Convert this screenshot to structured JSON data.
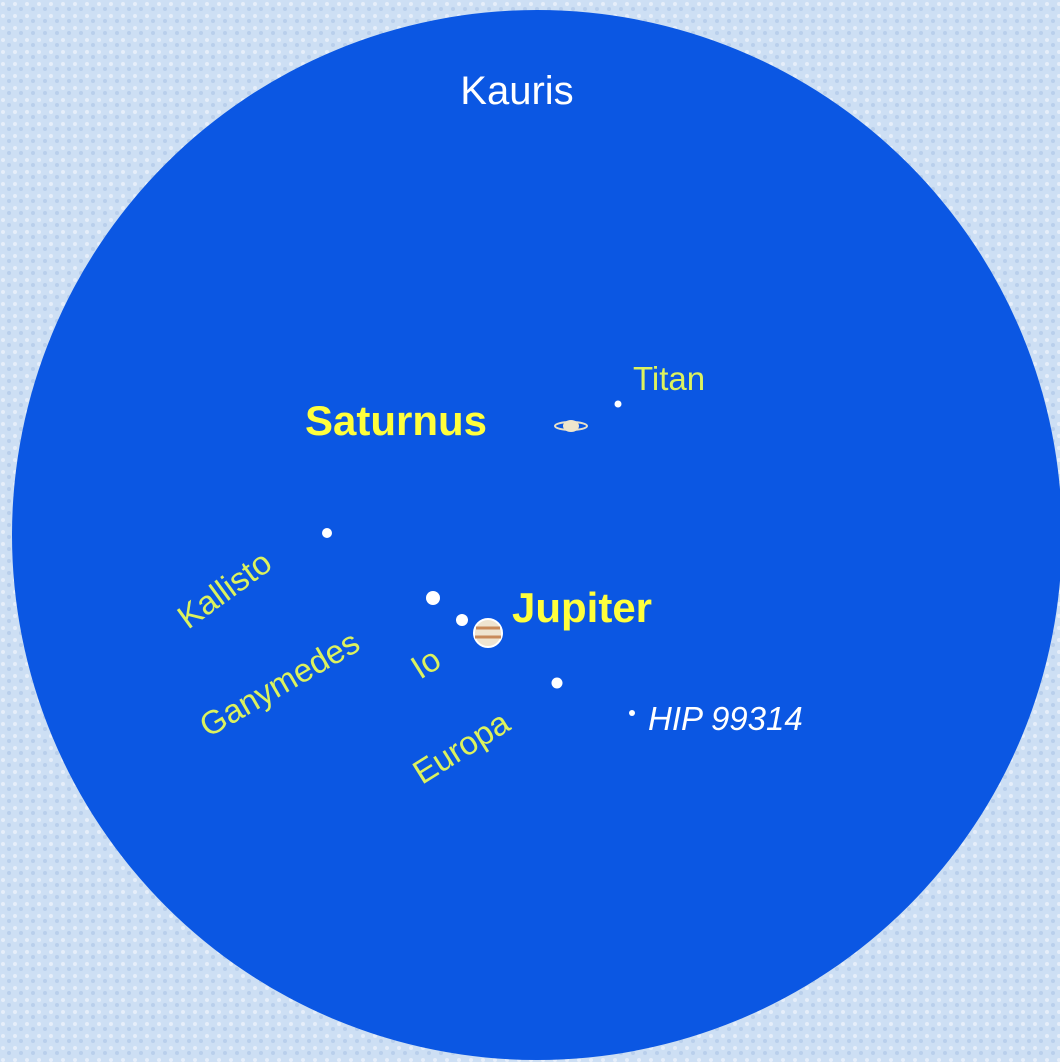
{
  "view": {
    "constellation": "Kauris",
    "planets": [
      {
        "label": "Saturnus"
      },
      {
        "label": "Jupiter"
      }
    ],
    "moons": [
      {
        "label": "Titan"
      },
      {
        "label": "Kallisto"
      },
      {
        "label": "Ganymedes"
      },
      {
        "label": "Io"
      },
      {
        "label": "Europa"
      }
    ],
    "star": {
      "label": "HIP 99314"
    }
  }
}
